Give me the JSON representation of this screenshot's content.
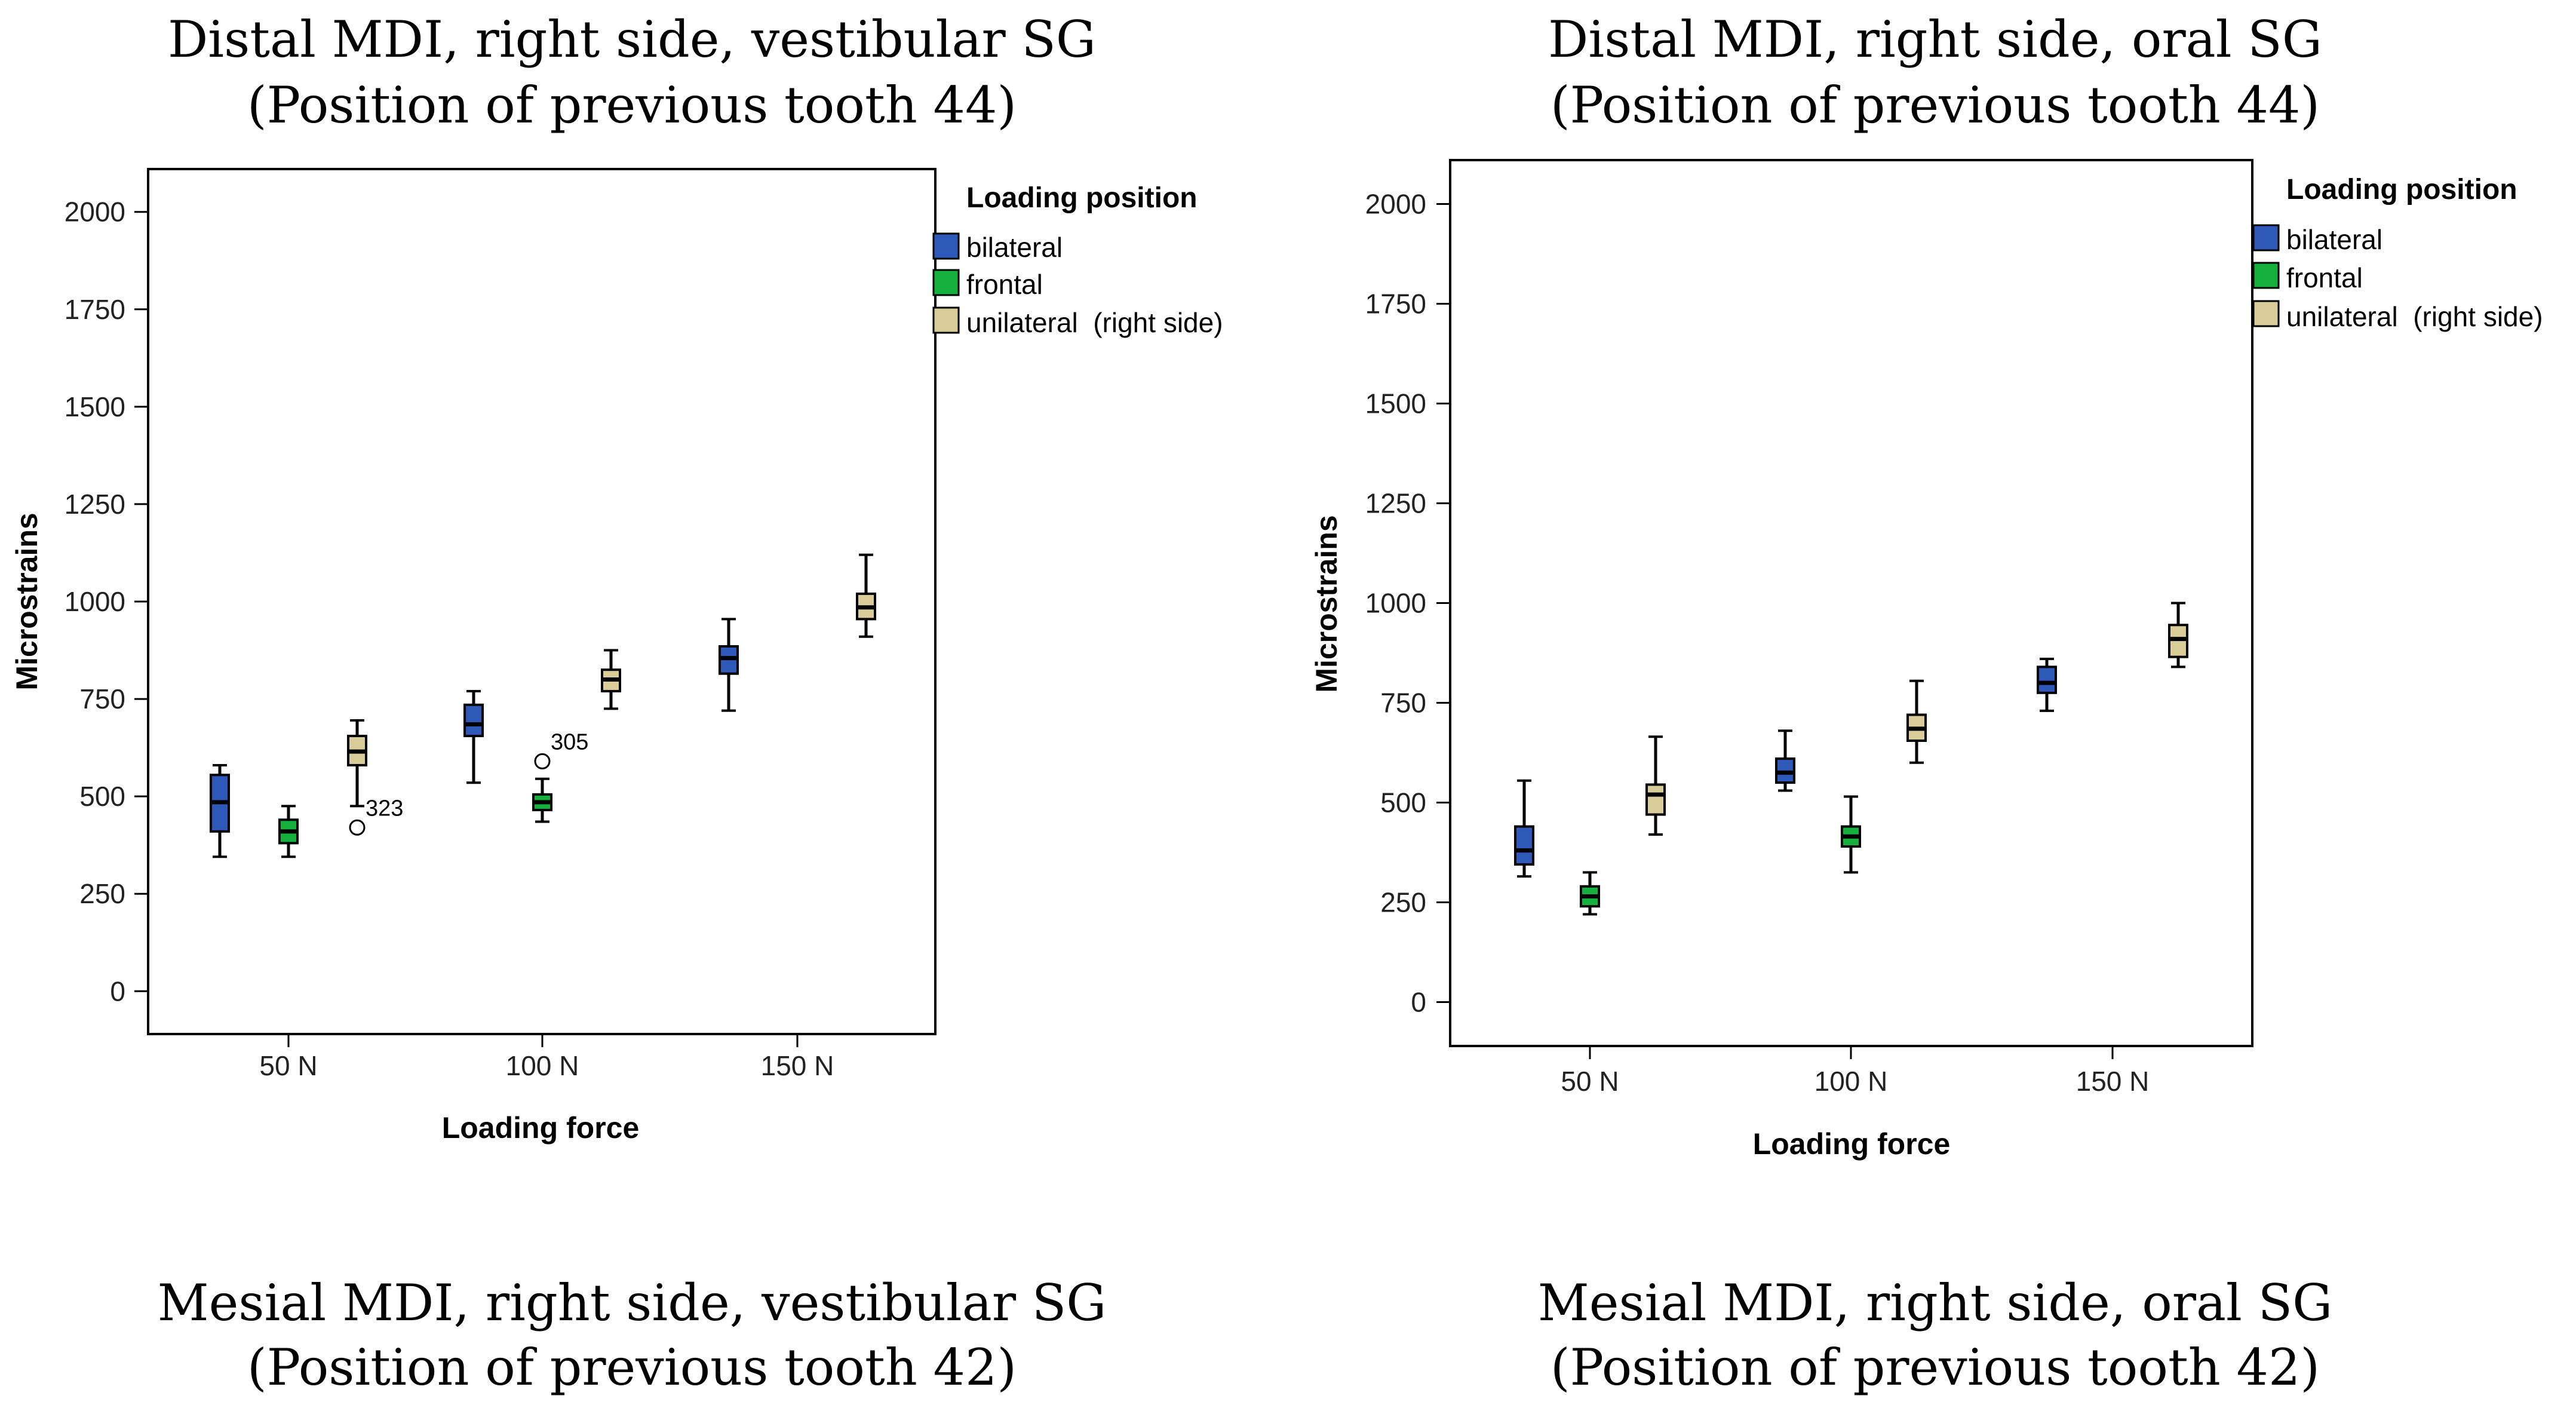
{
  "chart_data": [
    {
      "type": "boxplot",
      "title_line1": "Distal MDI, right side, vestibular SG",
      "title_line2": "(Position of previous tooth 44)",
      "xlabel": "Loading force",
      "ylabel": "Microstrains",
      "ylim": [
        -110,
        2110
      ],
      "yticks": [
        "0",
        "250",
        "500",
        "750",
        "1000",
        "1250",
        "1500",
        "1750",
        "2000"
      ],
      "categories": [
        "50 N",
        "100 N",
        "150 N"
      ],
      "legend_title": "Loading position",
      "legend_position": "right",
      "legend": [
        "bilateral",
        "frontal",
        "unilateral  (right side)"
      ],
      "colors": [
        "#2e59b8",
        "#16b13c",
        "#d8cc98"
      ],
      "boxes": [
        {
          "force": "50 N",
          "group": "bilateral",
          "min": 345,
          "q1": 410,
          "median": 485,
          "q3": 555,
          "max": 580
        },
        {
          "force": "50 N",
          "group": "frontal",
          "min": 345,
          "q1": 380,
          "median": 410,
          "q3": 440,
          "max": 475
        },
        {
          "force": "50 N",
          "group": "unilateral  (right side)",
          "min": 475,
          "q1": 580,
          "median": 615,
          "q3": 655,
          "max": 695
        },
        {
          "force": "100 N",
          "group": "bilateral",
          "min": 535,
          "q1": 655,
          "median": 685,
          "q3": 735,
          "max": 770
        },
        {
          "force": "100 N",
          "group": "frontal",
          "min": 435,
          "q1": 465,
          "median": 485,
          "q3": 505,
          "max": 545
        },
        {
          "force": "100 N",
          "group": "unilateral  (right side)",
          "min": 725,
          "q1": 770,
          "median": 800,
          "q3": 825,
          "max": 875
        },
        {
          "force": "150 N",
          "group": "bilateral",
          "min": 720,
          "q1": 815,
          "median": 855,
          "q3": 885,
          "max": 955
        },
        {
          "force": "150 N",
          "group": "unilateral  (right side)",
          "min": 910,
          "q1": 955,
          "median": 985,
          "q3": 1020,
          "max": 1120
        }
      ],
      "outliers": [
        {
          "force": "50 N",
          "group": "unilateral  (right side)",
          "value": 420,
          "label": "323"
        },
        {
          "force": "100 N",
          "group": "frontal",
          "value": 590,
          "label": "305"
        }
      ]
    },
    {
      "type": "boxplot",
      "title_line1": "Distal MDI, right side, oral SG",
      "title_line2": "(Position of previous tooth 44)",
      "xlabel": "Loading force",
      "ylabel": "Microstrains",
      "ylim": [
        -110,
        2110
      ],
      "yticks": [
        "0",
        "250",
        "500",
        "750",
        "1000",
        "1250",
        "1500",
        "1750",
        "2000"
      ],
      "categories": [
        "50 N",
        "100 N",
        "150 N"
      ],
      "legend_title": "Loading position",
      "legend_position": "right",
      "legend": [
        "bilateral",
        "frontal",
        "unilateral  (right side)"
      ],
      "colors": [
        "#2e59b8",
        "#16b13c",
        "#d8cc98"
      ],
      "boxes": [
        {
          "force": "50 N",
          "group": "bilateral",
          "min": 315,
          "q1": 345,
          "median": 380,
          "q3": 440,
          "max": 555
        },
        {
          "force": "50 N",
          "group": "frontal",
          "min": 220,
          "q1": 240,
          "median": 265,
          "q3": 290,
          "max": 325
        },
        {
          "force": "50 N",
          "group": "unilateral  (right side)",
          "min": 420,
          "q1": 470,
          "median": 520,
          "q3": 545,
          "max": 665
        },
        {
          "force": "100 N",
          "group": "bilateral",
          "min": 530,
          "q1": 550,
          "median": 575,
          "q3": 610,
          "max": 680
        },
        {
          "force": "100 N",
          "group": "frontal",
          "min": 325,
          "q1": 390,
          "median": 415,
          "q3": 440,
          "max": 515
        },
        {
          "force": "100 N",
          "group": "unilateral  (right side)",
          "min": 600,
          "q1": 655,
          "median": 685,
          "q3": 720,
          "max": 805
        },
        {
          "force": "150 N",
          "group": "bilateral",
          "min": 730,
          "q1": 775,
          "median": 800,
          "q3": 840,
          "max": 860
        },
        {
          "force": "150 N",
          "group": "unilateral  (right side)",
          "min": 840,
          "q1": 865,
          "median": 910,
          "q3": 945,
          "max": 1000
        }
      ],
      "outliers": []
    }
  ],
  "bottom_titles": [
    {
      "line1": "Mesial MDI, right side, vestibular SG",
      "line2": "(Position of previous tooth 42)"
    },
    {
      "line1": "Mesial MDI, right side, oral SG",
      "line2": "(Position of previous tooth 42)"
    }
  ]
}
